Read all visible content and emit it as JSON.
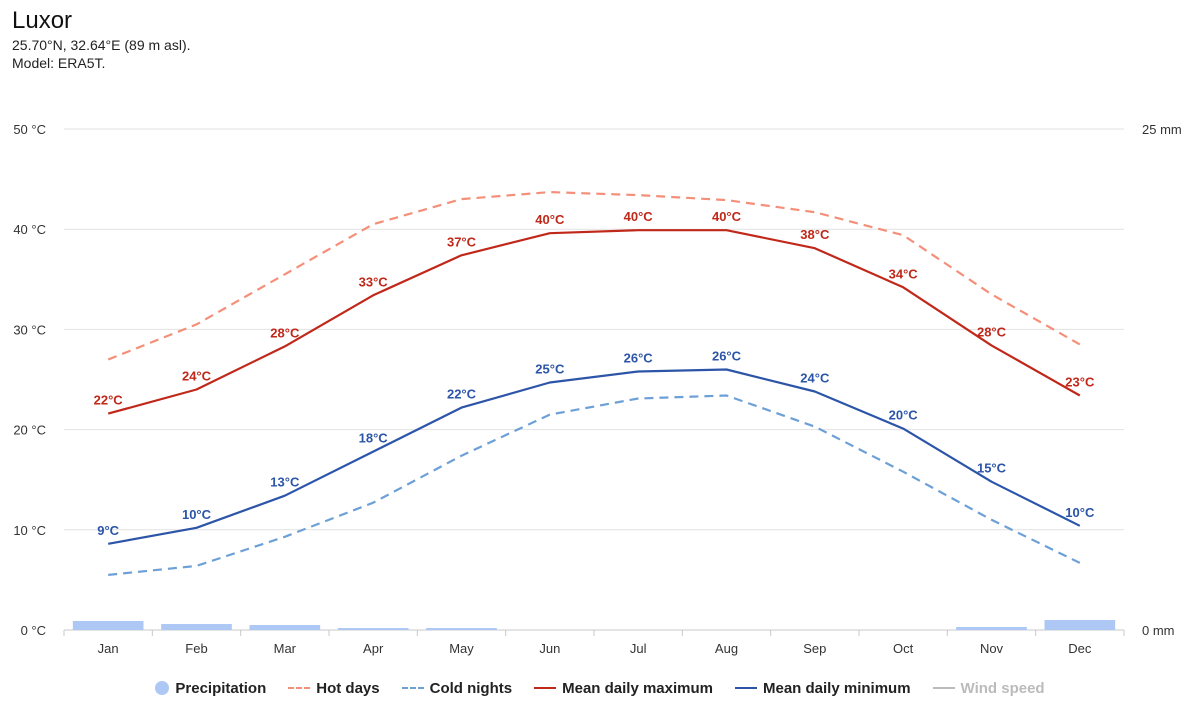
{
  "header": {
    "title": "Luxor",
    "coords": "25.70°N, 32.64°E (89 m asl).",
    "model": "Model: ERA5T."
  },
  "colors": {
    "hot": "#f4907a",
    "max": "#c0281a",
    "min": "#2c55a8",
    "cold": "#6da0d6",
    "precip": "#aec8f5",
    "grid": "#e2e2e2",
    "wind": "#bbbbbb"
  },
  "chart_data": {
    "type": "line",
    "categories": [
      "Jan",
      "Feb",
      "Mar",
      "Apr",
      "May",
      "Jun",
      "Jul",
      "Aug",
      "Sep",
      "Oct",
      "Nov",
      "Dec"
    ],
    "y_left": {
      "ticks": [
        0,
        10,
        20,
        30,
        40,
        50
      ],
      "tick_labels": [
        "0 °C",
        "10 °C",
        "20 °C",
        "30 °C",
        "40 °C",
        "50 °C"
      ],
      "ylim": [
        0,
        50
      ]
    },
    "y_right": {
      "tick_labels": [
        "0 mm",
        "25 mm"
      ],
      "ylim": [
        0,
        25
      ]
    },
    "series": [
      {
        "name": "Hot days",
        "style": "dash",
        "color_key": "hot",
        "values": [
          27,
          30.5,
          35.5,
          40.5,
          43,
          43.7,
          43.4,
          42.9,
          41.7,
          39.4,
          33.5,
          28.5
        ]
      },
      {
        "name": "Mean daily maximum",
        "style": "solid",
        "color_key": "max",
        "values": [
          21.6,
          24.0,
          28.3,
          33.4,
          37.4,
          39.6,
          39.9,
          39.9,
          38.1,
          34.2,
          28.4,
          23.4
        ],
        "labels": [
          "22°C",
          "24°C",
          "28°C",
          "33°C",
          "37°C",
          "40°C",
          "40°C",
          "40°C",
          "38°C",
          "34°C",
          "28°C",
          "23°C"
        ]
      },
      {
        "name": "Mean daily minimum",
        "style": "solid",
        "color_key": "min",
        "values": [
          8.6,
          10.2,
          13.4,
          17.8,
          22.2,
          24.7,
          25.8,
          26.0,
          23.8,
          20.1,
          14.8,
          10.4
        ],
        "labels": [
          "9°C",
          "10°C",
          "13°C",
          "18°C",
          "22°C",
          "25°C",
          "26°C",
          "26°C",
          "24°C",
          "20°C",
          "15°C",
          "10°C"
        ]
      },
      {
        "name": "Cold nights",
        "style": "dash",
        "color_key": "cold",
        "values": [
          5.5,
          6.4,
          9.3,
          12.7,
          17.4,
          21.5,
          23.1,
          23.4,
          20.3,
          15.8,
          11.0,
          6.7
        ]
      }
    ],
    "precipitation_mm": [
      0.45,
      0.3,
      0.25,
      0.1,
      0.1,
      0,
      0,
      0,
      0,
      0,
      0.15,
      0.5
    ],
    "legend": [
      {
        "name": "Precipitation",
        "symbol": "dot",
        "color_key": "precip",
        "enabled": true
      },
      {
        "name": "Hot days",
        "symbol": "dash",
        "color_key": "hot",
        "enabled": true
      },
      {
        "name": "Cold nights",
        "symbol": "dash",
        "color_key": "cold",
        "enabled": true
      },
      {
        "name": "Mean daily maximum",
        "symbol": "line",
        "color_key": "max",
        "enabled": true
      },
      {
        "name": "Mean daily minimum",
        "symbol": "line",
        "color_key": "min",
        "enabled": true
      },
      {
        "name": "Wind speed",
        "symbol": "line",
        "color_key": "wind",
        "enabled": false
      }
    ]
  }
}
